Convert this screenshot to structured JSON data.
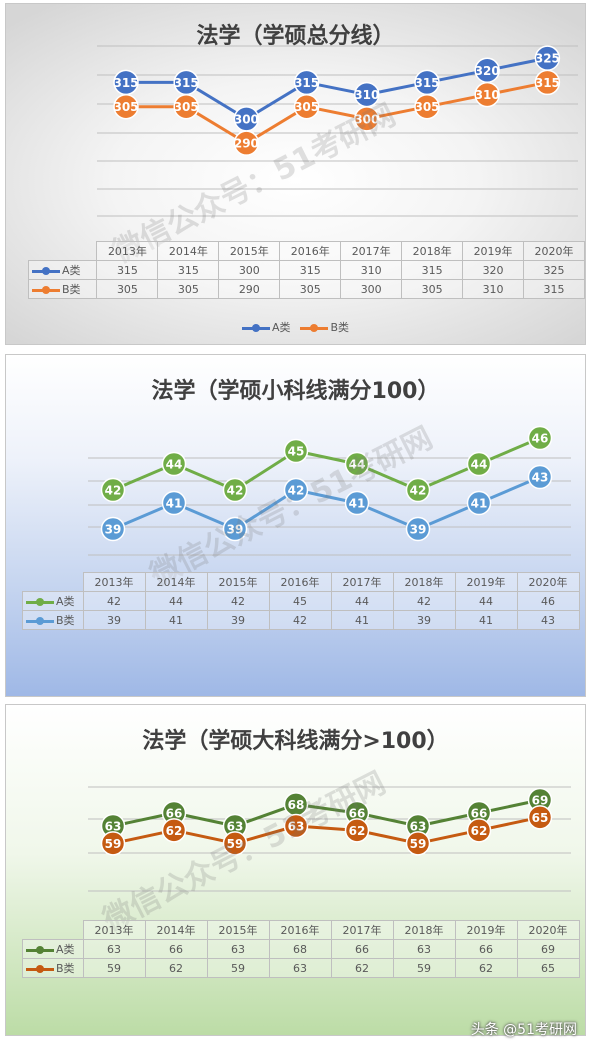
{
  "chart_data": [
    {
      "type": "line",
      "title": "法学（学硕总分线）",
      "categories": [
        "2013年",
        "2014年",
        "2015年",
        "2016年",
        "2017年",
        "2018年",
        "2019年",
        "2020年"
      ],
      "series": [
        {
          "name": "A类",
          "values": [
            315,
            315,
            300,
            315,
            310,
            315,
            320,
            325
          ],
          "color": "#4472c4"
        },
        {
          "name": "B类",
          "values": [
            305,
            305,
            290,
            305,
            300,
            305,
            310,
            315
          ],
          "color": "#ed7d31"
        }
      ],
      "ylim": [
        260,
        330
      ],
      "grid": true,
      "legend": "bottom",
      "watermark": "微信公众号：51考研网"
    },
    {
      "type": "line",
      "title": "法学（学硕小科线满分100）",
      "categories": [
        "2013年",
        "2014年",
        "2015年",
        "2016年",
        "2017年",
        "2018年",
        "2019年",
        "2020年"
      ],
      "series": [
        {
          "name": "A类",
          "values": [
            42,
            44,
            42,
            45,
            44,
            42,
            44,
            46
          ],
          "color": "#70ad47"
        },
        {
          "name": "B类",
          "values": [
            39,
            41,
            39,
            42,
            41,
            39,
            41,
            43
          ],
          "color": "#5b9bd5"
        }
      ],
      "ylim": [
        37,
        47
      ],
      "grid": true,
      "legend": "table",
      "watermark": "微信公众号：51考研网"
    },
    {
      "type": "line",
      "title": "法学（学硕大科线满分>100）",
      "categories": [
        "2013年",
        "2014年",
        "2015年",
        "2016年",
        "2017年",
        "2018年",
        "2019年",
        "2020年"
      ],
      "series": [
        {
          "name": "A类",
          "values": [
            63,
            66,
            63,
            68,
            66,
            63,
            66,
            69
          ],
          "color": "#548235"
        },
        {
          "name": "B类",
          "values": [
            59,
            62,
            59,
            63,
            62,
            59,
            62,
            65
          ],
          "color": "#c55a11"
        }
      ],
      "ylim": [
        48,
        72
      ],
      "grid": true,
      "legend": "table",
      "watermark": "微信公众号：51考研网"
    }
  ],
  "footer": "头条 @51考研网"
}
